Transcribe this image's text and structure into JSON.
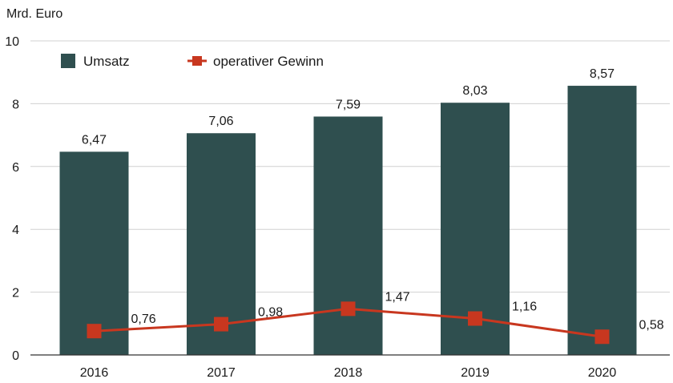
{
  "chart_data": {
    "type": "bar",
    "ylabel": "Mrd. Euro",
    "ylim": [
      0,
      10
    ],
    "yticks": [
      0,
      2,
      4,
      6,
      8,
      10
    ],
    "grid": true,
    "legend_position": "top-left",
    "categories": [
      "2016",
      "2017",
      "2018",
      "2019",
      "2020"
    ],
    "series": [
      {
        "name": "Umsatz",
        "type": "bar",
        "color": "#2f4f4f",
        "values": [
          6.47,
          7.06,
          7.59,
          8.03,
          8.57
        ],
        "labels": [
          "6,47",
          "7,06",
          "7,59",
          "8,03",
          "8,57"
        ]
      },
      {
        "name": "operativer Gewinn",
        "type": "line",
        "marker": "square",
        "color": "#c8371f",
        "values": [
          0.76,
          0.98,
          1.47,
          1.16,
          0.58
        ],
        "labels": [
          "0,76",
          "0,98",
          "1,47",
          "1,16",
          "0,58"
        ]
      }
    ]
  }
}
